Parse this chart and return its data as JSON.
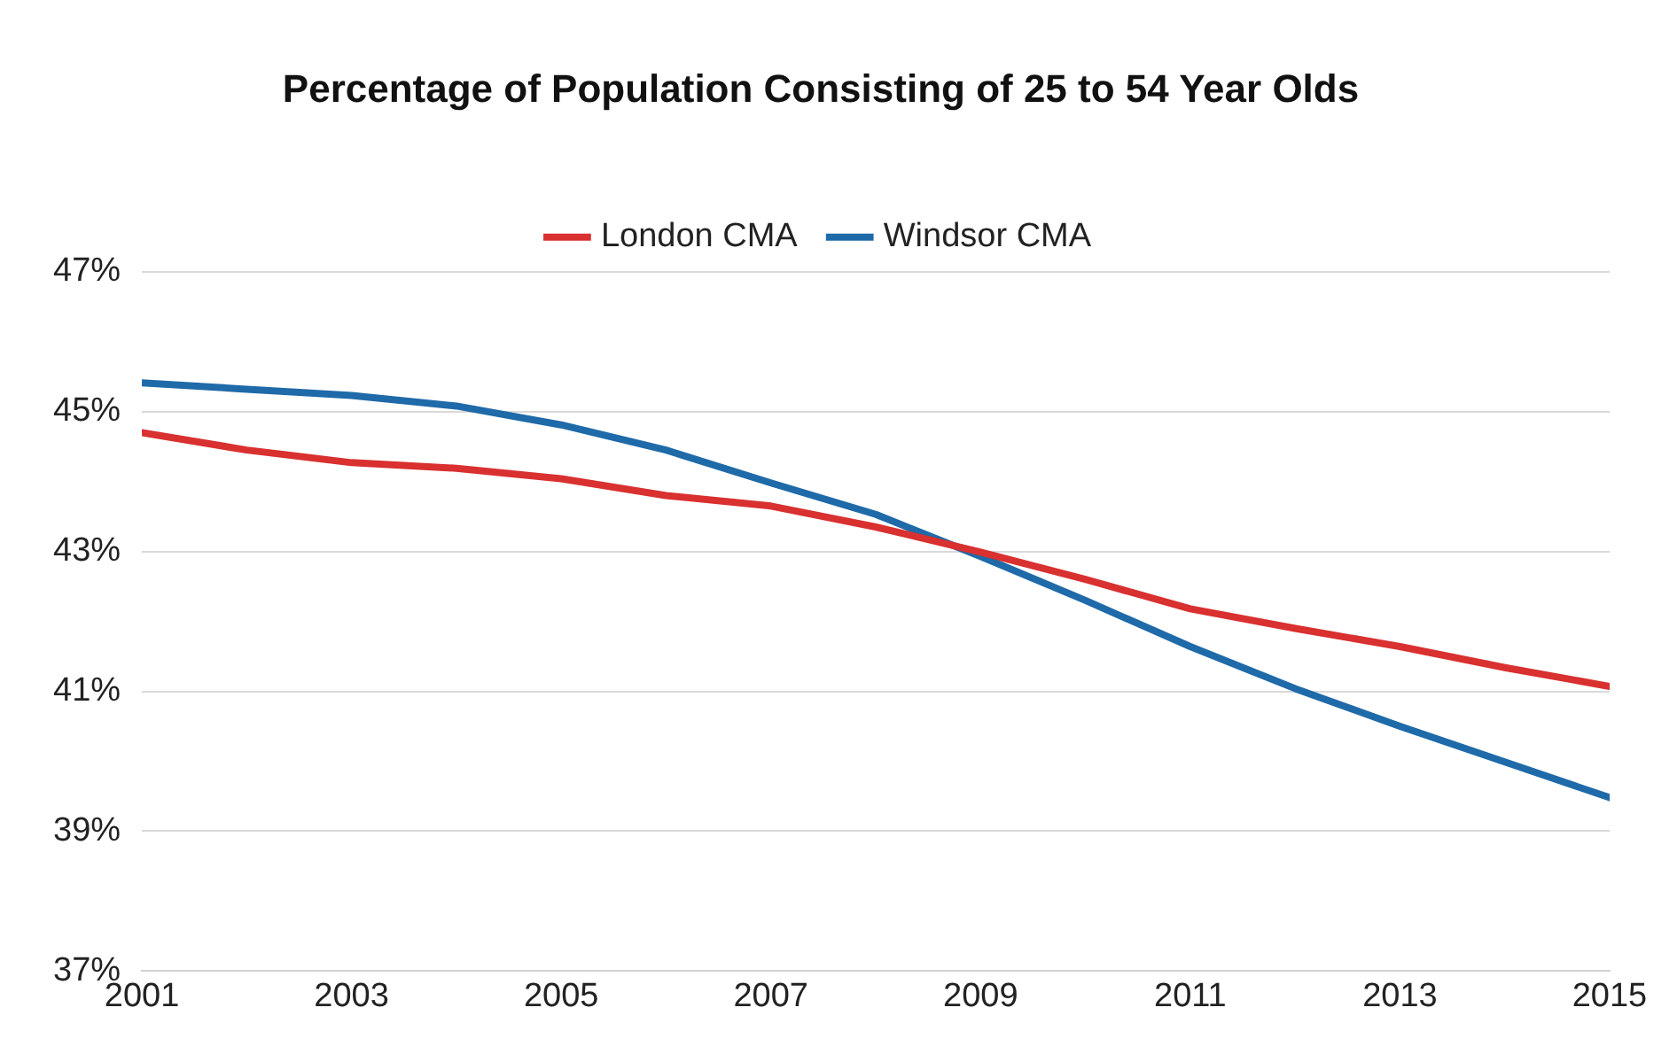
{
  "chart_data": {
    "type": "line",
    "title": "Percentage of Population Consisting of 25 to 54 Year Olds",
    "x": [
      2001,
      2002,
      2003,
      2004,
      2005,
      2006,
      2007,
      2008,
      2009,
      2010,
      2011,
      2012,
      2013,
      2014,
      2015
    ],
    "series": [
      {
        "name": "London CMA",
        "color": "#d93030",
        "values": [
          44.7,
          44.45,
          44.27,
          44.19,
          44.04,
          43.8,
          43.65,
          43.35,
          42.99,
          42.6,
          42.18,
          41.9,
          41.64,
          41.34,
          41.07
        ]
      },
      {
        "name": "Windsor CMA",
        "color": "#1f6aa8",
        "values": [
          45.41,
          45.32,
          45.23,
          45.08,
          44.81,
          44.45,
          43.98,
          43.53,
          42.93,
          42.3,
          41.64,
          41.04,
          40.5,
          39.99,
          39.48
        ]
      }
    ],
    "xlim": [
      2001,
      2015
    ],
    "xticks": [
      2001,
      2003,
      2005,
      2007,
      2009,
      2011,
      2013,
      2015
    ],
    "ylim": [
      37,
      47
    ],
    "yticks": [
      {
        "value": 37,
        "label": "37%"
      },
      {
        "value": 39,
        "label": "39%"
      },
      {
        "value": 41,
        "label": "41%"
      },
      {
        "value": 43,
        "label": "43%"
      },
      {
        "value": 45,
        "label": "45%"
      },
      {
        "value": 47,
        "label": "47%"
      }
    ],
    "grid": "y",
    "legend": "top",
    "marker": "none",
    "line_style": "solid"
  }
}
